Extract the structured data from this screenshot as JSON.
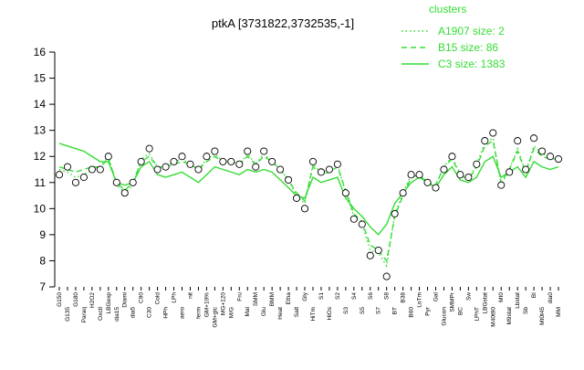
{
  "chart_data": {
    "type": "line",
    "title": "ptkA [3731822,3732535,-1]",
    "legend_title": "clusters",
    "legend_position": "top-right",
    "categories": [
      "G150",
      "G135",
      "G180",
      "Paraq",
      "H2O2",
      "Oxctl",
      "LBGexp",
      "dia15",
      "Diami",
      "dia5",
      "C90",
      "C30",
      "Cold",
      "HPh",
      "LPh",
      "aero",
      "nit",
      "ferm",
      "GM+10%",
      "GM+glc",
      "MG+120",
      "M/G",
      "Fru",
      "Mal",
      "SMM",
      "Glu",
      "BMM",
      "Heat",
      "Etha",
      "Salt",
      "Gly",
      "HiTm",
      "S1",
      "HiOs",
      "S2",
      "S3",
      "S4",
      "S5",
      "S6",
      "S7",
      "S8",
      "BT",
      "B38",
      "B60",
      "LoTm",
      "Pyr",
      "Gal",
      "Glucon",
      "SMMPr",
      "BC",
      "Sw",
      "LPhT",
      "LBGstat",
      "M40t90",
      "Mt0",
      "M9stat",
      "Lbstat",
      "Sb",
      "BI",
      "Mt0t45",
      "dia0",
      "MM"
    ],
    "points": {
      "color": "#000000",
      "values": [
        11.3,
        11.6,
        11.0,
        11.2,
        11.5,
        11.5,
        12.0,
        11.0,
        10.6,
        11.0,
        11.8,
        12.3,
        11.5,
        11.6,
        11.8,
        12.0,
        11.7,
        11.5,
        12.0,
        12.2,
        11.8,
        11.8,
        11.7,
        12.2,
        11.6,
        12.2,
        11.8,
        11.5,
        11.1,
        10.4,
        10.0,
        11.8,
        11.4,
        11.5,
        11.7,
        10.6,
        9.6,
        9.4,
        8.2,
        8.4,
        7.4,
        9.8,
        10.6,
        11.3,
        11.3,
        11.0,
        10.8,
        11.5,
        12.0,
        11.3,
        11.2,
        11.7,
        12.6,
        12.9,
        10.9,
        11.4,
        12.6,
        11.5,
        12.7,
        12.2,
        12.0,
        11.9
      ]
    },
    "series": [
      {
        "name": "A1907 size: 2",
        "color": "#33dd33",
        "style": "dotted",
        "values": [
          11.5,
          11.4,
          11.2,
          11.3,
          11.5,
          11.6,
          12.0,
          10.9,
          10.6,
          10.9,
          11.9,
          12.1,
          11.6,
          11.6,
          11.8,
          11.9,
          11.7,
          11.5,
          11.9,
          12.1,
          11.8,
          11.8,
          11.7,
          12.1,
          11.7,
          12.1,
          11.8,
          11.5,
          11.1,
          10.5,
          10.2,
          11.7,
          11.4,
          11.5,
          11.7,
          10.6,
          9.7,
          9.4,
          8.4,
          8.3,
          7.8,
          9.8,
          10.6,
          11.3,
          11.3,
          11.0,
          10.9,
          11.6,
          12.0,
          11.3,
          11.1,
          11.7,
          12.5,
          12.7,
          10.9,
          11.5,
          12.3,
          11.4,
          12.4,
          12.1,
          12.0,
          11.9
        ]
      },
      {
        "name": "B15 size: 86",
        "color": "#33dd33",
        "style": "dashed",
        "values": [
          11.6,
          11.5,
          11.4,
          11.5,
          11.6,
          11.6,
          11.9,
          11.0,
          10.7,
          11.0,
          11.8,
          12.0,
          11.6,
          11.6,
          11.7,
          11.8,
          11.7,
          11.5,
          11.8,
          12.0,
          11.8,
          11.8,
          11.7,
          12.0,
          11.7,
          12.0,
          11.8,
          11.5,
          11.1,
          10.6,
          10.3,
          11.6,
          11.3,
          11.4,
          11.6,
          10.7,
          9.8,
          9.5,
          8.6,
          8.4,
          8.0,
          9.7,
          10.5,
          11.2,
          11.3,
          11.0,
          10.9,
          11.6,
          11.9,
          11.3,
          11.1,
          11.6,
          12.4,
          12.6,
          11.0,
          11.5,
          12.2,
          11.4,
          12.3,
          12.0,
          11.9,
          11.9
        ]
      },
      {
        "name": "C3 size: 1383",
        "color": "#33dd33",
        "style": "solid",
        "values": [
          12.5,
          12.4,
          12.3,
          12.2,
          12.0,
          11.8,
          11.8,
          11.0,
          10.9,
          11.0,
          11.6,
          11.8,
          11.3,
          11.2,
          11.3,
          11.4,
          11.2,
          11.0,
          11.3,
          11.6,
          11.5,
          11.4,
          11.3,
          11.5,
          11.4,
          11.5,
          11.4,
          11.1,
          10.8,
          10.5,
          10.4,
          11.2,
          11.0,
          11.1,
          11.2,
          10.4,
          10.0,
          9.7,
          9.3,
          9.0,
          9.4,
          10.2,
          10.6,
          11.0,
          11.2,
          11.0,
          10.8,
          11.3,
          11.6,
          11.1,
          11.0,
          11.2,
          11.8,
          12.0,
          11.2,
          11.4,
          11.6,
          11.2,
          11.8,
          11.6,
          11.5,
          11.6
        ]
      }
    ],
    "ylim": [
      7,
      16
    ],
    "yticks": [
      7,
      8,
      9,
      10,
      11,
      12,
      13,
      14,
      15,
      16
    ]
  }
}
